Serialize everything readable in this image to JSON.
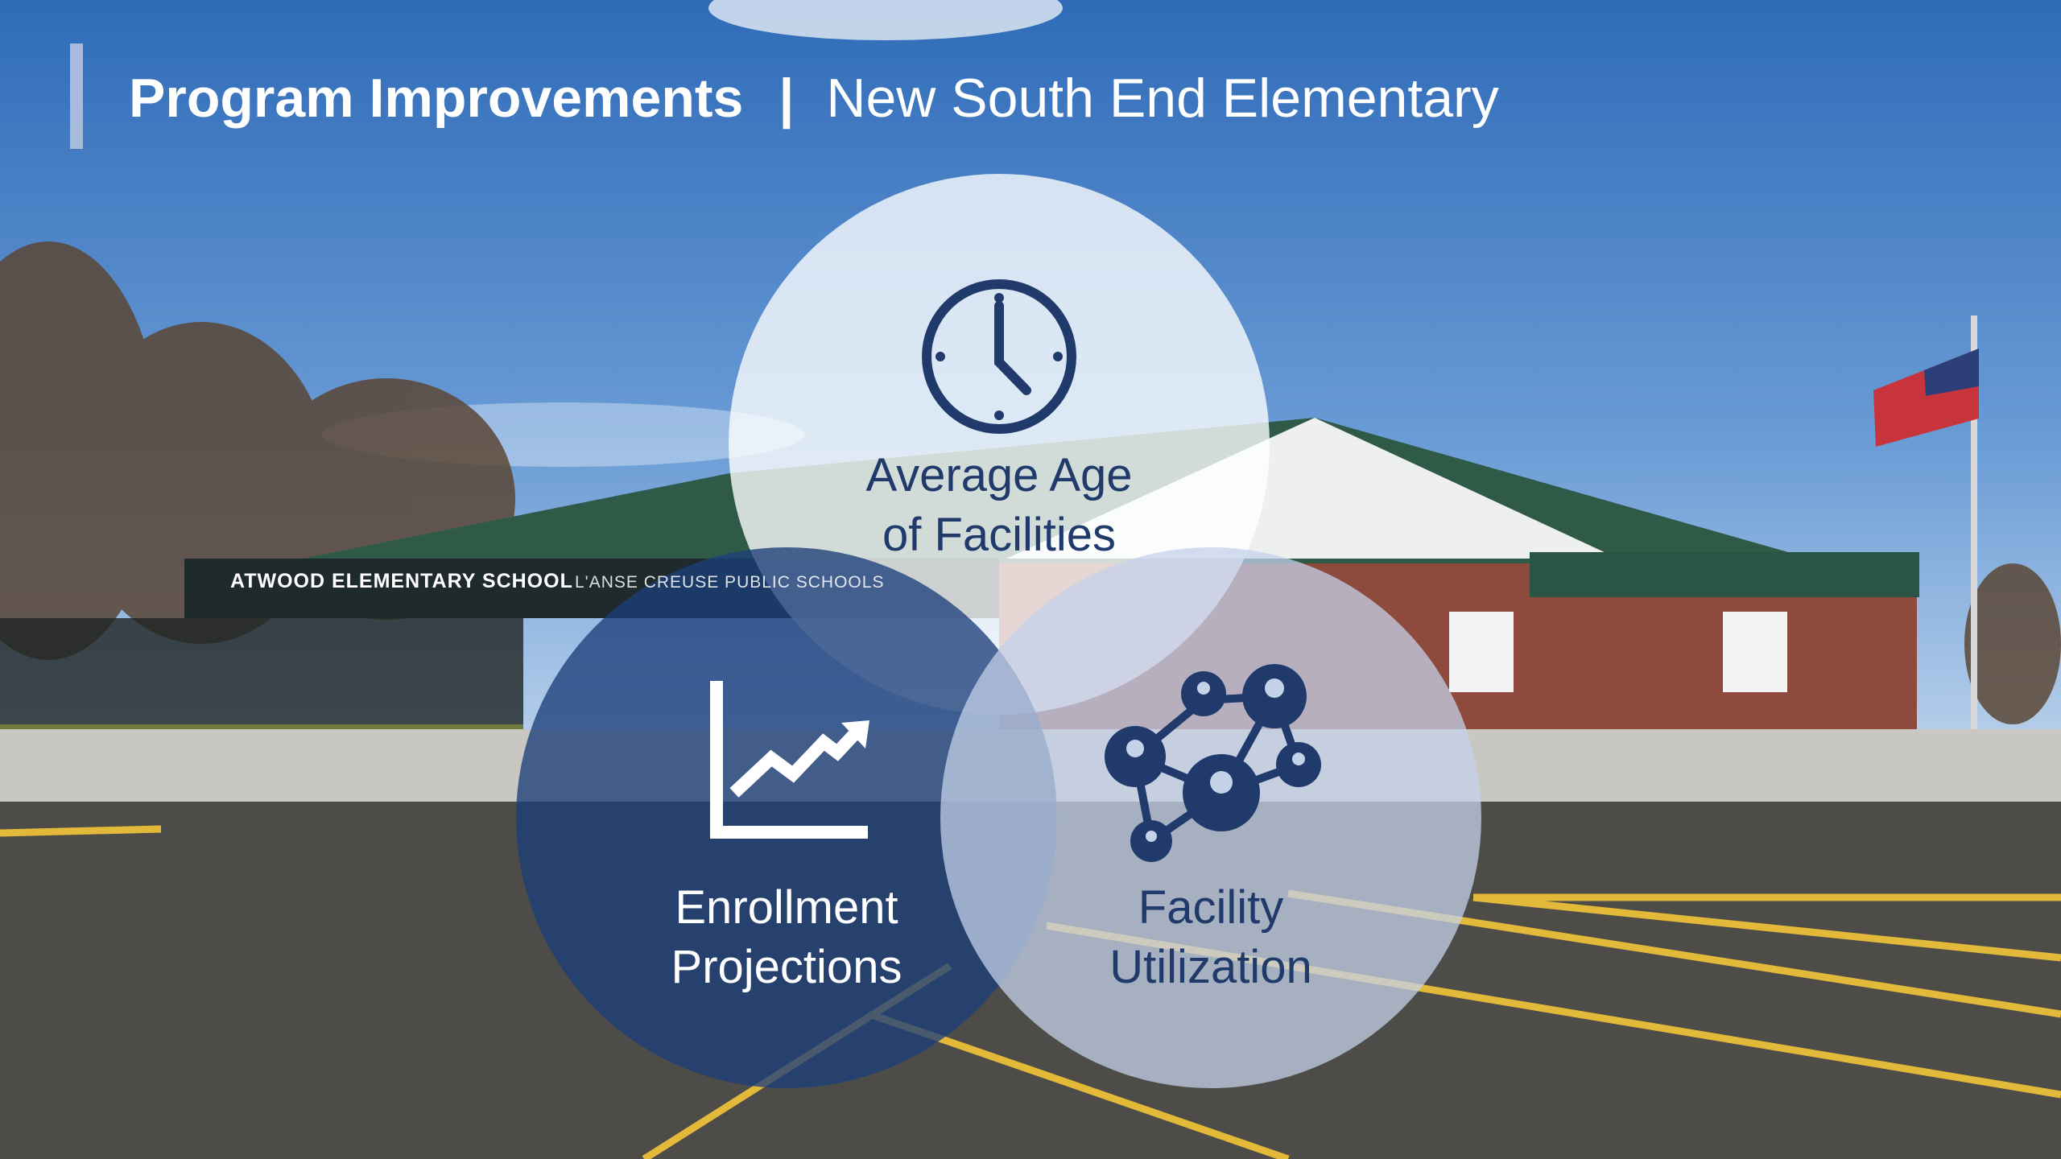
{
  "header": {
    "title": "Program Improvements",
    "separator": "|",
    "subtitle": "New South End Elementary"
  },
  "photo": {
    "sign": "ATWOOD ELEMENTARY SCHOOL",
    "sign_district": "L'ANSE CREUSE PUBLIC SCHOOLS"
  },
  "circles": [
    {
      "lines": [
        "Average Age",
        "of Facilities"
      ]
    },
    {
      "lines": [
        "Enrollment",
        "Projections"
      ]
    },
    {
      "lines": [
        "Facility",
        "Utilization"
      ]
    }
  ]
}
